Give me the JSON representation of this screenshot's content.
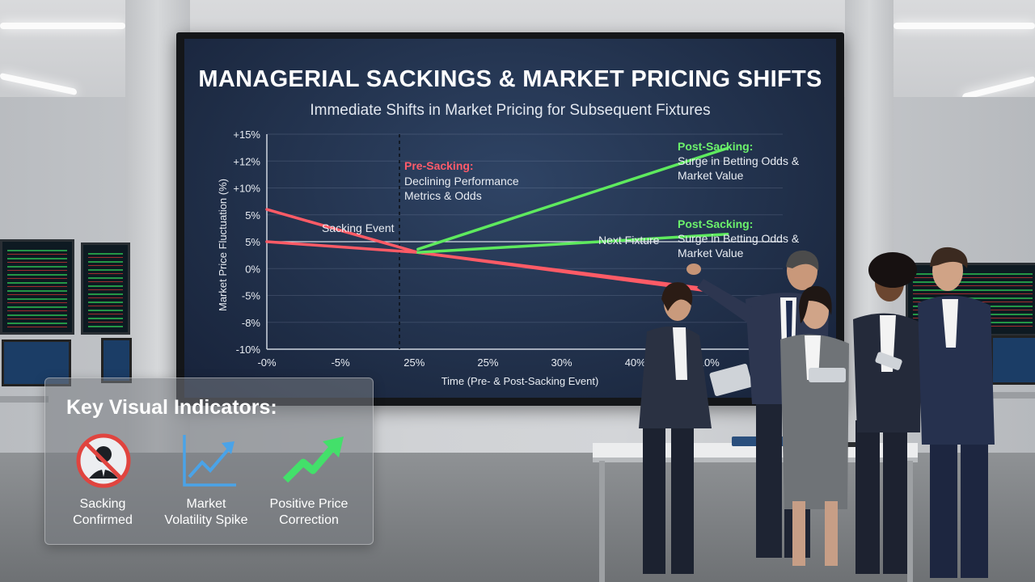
{
  "screen": {
    "title": "MANAGERIAL SACKINGS & MARKET PRICING SHIFTS",
    "subtitle": "Immediate Shifts in Market Pricing for Subsequent Fixtures"
  },
  "chart_data": {
    "type": "line",
    "ylabel": "Market Price Fluctuation (%)",
    "xlabel": "Time (Pre- & Post-Sacking Event)",
    "y_ticks": [
      "+15%",
      "+12%",
      "+10%",
      "5%",
      "5%",
      "0%",
      "-5%",
      "-8%",
      "-10%"
    ],
    "x_ticks": [
      "-0%",
      "-5%",
      "25%",
      "25%",
      "30%",
      "40%",
      "10%",
      "10%"
    ],
    "grid": true,
    "series": [
      {
        "color": "#ff5b66",
        "points": [
          [
            0,
            3
          ],
          [
            2.05,
            -1
          ],
          [
            6,
            -4.6
          ]
        ]
      },
      {
        "color": "#ff5b66",
        "points": [
          [
            0,
            0
          ],
          [
            2.05,
            -1
          ],
          [
            6,
            -4.4
          ]
        ]
      },
      {
        "color": "#5eea5e",
        "points": [
          [
            2.05,
            -0.7
          ],
          [
            6.25,
            8.7
          ]
        ]
      },
      {
        "color": "#5eea5e",
        "points": [
          [
            2.05,
            -1
          ],
          [
            6.25,
            0.7
          ]
        ]
      }
    ],
    "annotations": {
      "sacking_event": "Sacking Event",
      "pre_title": "Pre-Sacking:",
      "pre_line1": "Declining Performance",
      "pre_line2": "Metrics & Odds",
      "post_top_title": "Post-Sacking:",
      "post_top_line1": "Surge in Betting Odds &",
      "post_top_line2": "Market Value",
      "next_fixture": "Next Fixture",
      "post_mid_title": "Post-Sacking:",
      "post_mid_line1": "Surge in Betting Odds &",
      "post_mid_line2": "Market Value"
    }
  },
  "panel": {
    "title": "Key Visual Indicators:",
    "items": [
      {
        "line1": "Sacking",
        "line2": "Confirmed",
        "icon": "no-manager-icon"
      },
      {
        "line1": "Market",
        "line2": "Volatility Spike",
        "icon": "line-chart-up-icon"
      },
      {
        "line1": "Positive Price",
        "line2": "Correction",
        "icon": "green-arrow-up-icon"
      }
    ]
  },
  "colors": {
    "red_line": "#ff5b66",
    "green_line": "#5eea5e",
    "screen_bg": "#1e2c45"
  }
}
